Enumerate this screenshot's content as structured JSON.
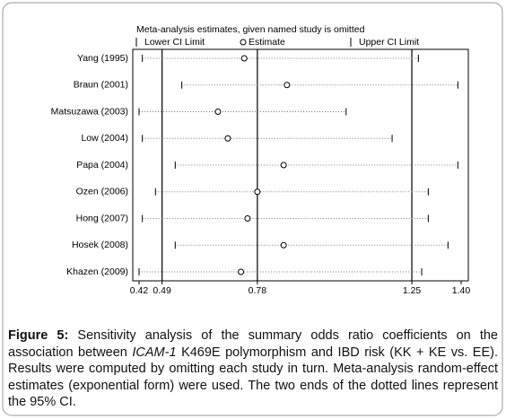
{
  "chart_data": {
    "type": "forest",
    "title": "Meta-analysis estimates, given named study is omitted",
    "categories": [
      "Yang (1995)",
      "Braun (2001)",
      "Matsuzawa (2003)",
      "Low (2004)",
      "Papa (2004)",
      "Ozen (2006)",
      "Hong (2007)",
      "Hosek (2008)",
      "Khazen (2009)"
    ],
    "series": [
      {
        "name": "Lower CI Limit",
        "values": [
          0.43,
          0.55,
          0.42,
          0.43,
          0.53,
          0.47,
          0.43,
          0.53,
          0.42
        ]
      },
      {
        "name": "Estimate",
        "values": [
          0.74,
          0.87,
          0.66,
          0.69,
          0.86,
          0.78,
          0.75,
          0.86,
          0.73
        ]
      },
      {
        "name": "Upper CI Limit",
        "values": [
          1.27,
          1.39,
          1.05,
          1.19,
          1.39,
          1.3,
          1.3,
          1.36,
          1.28
        ]
      }
    ],
    "reference_lines": [
      0.49,
      0.78,
      1.25
    ],
    "xlim": [
      0.42,
      1.4
    ],
    "xticks": [
      0.42,
      0.49,
      0.78,
      1.25,
      {
        "value": 1.4,
        "label": "1.40"
      }
    ]
  },
  "caption": {
    "label": "Figure 5:",
    "text_before": "Sensitivity analysis of the summary odds ratio coefficients on the association between",
    "gene": "ICAM-1",
    "text_after": "K469E polymorphism and IBD risk (KK + KE vs. EE). Results were computed by omitting each study in turn. Meta-analysis random-effect estimates (exponential form) were used. The two ends of the dotted lines represent the 95% CI."
  }
}
